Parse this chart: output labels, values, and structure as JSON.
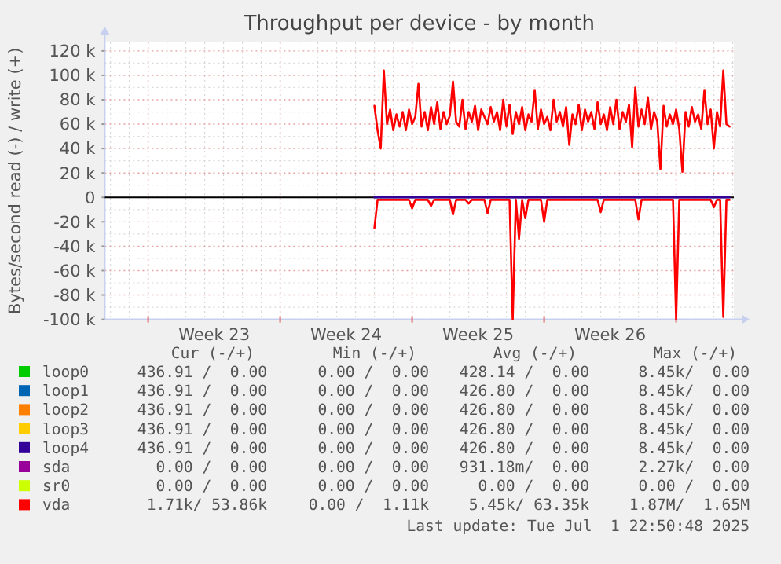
{
  "chart_data": {
    "type": "line",
    "title": "Throughput per device - by month",
    "ylabel": "Bytes/second read (-) / write (+)",
    "xlim": [
      "2025-05-30T16:48",
      "2025-07-03T01:26"
    ],
    "xticks": [
      {
        "value": "2025-06-02T00:00",
        "label": null
      },
      {
        "value": "2025-06-05T12:00",
        "label": "Week 23"
      },
      {
        "value": "2025-06-09T00:00",
        "label": null
      },
      {
        "value": "2025-06-12T12:00",
        "label": "Week 24"
      },
      {
        "value": "2025-06-16T00:00",
        "label": null
      },
      {
        "value": "2025-06-19T12:00",
        "label": "Week 25"
      },
      {
        "value": "2025-06-23T00:00",
        "label": null
      },
      {
        "value": "2025-06-26T12:00",
        "label": "Week 26"
      },
      {
        "value": "2025-06-30T00:00",
        "label": null
      }
    ],
    "ylim": [
      -100000,
      127000
    ],
    "yticks": [
      {
        "value": -100000,
        "label": "-100 k"
      },
      {
        "value": -80000,
        "label": "-80 k"
      },
      {
        "value": -60000,
        "label": "-60 k"
      },
      {
        "value": -40000,
        "label": "-40 k"
      },
      {
        "value": -20000,
        "label": "-20 k"
      },
      0,
      {
        "value": 20000,
        "label": "20 k"
      },
      {
        "value": 40000,
        "label": "40 k"
      },
      {
        "value": 60000,
        "label": "60 k"
      },
      {
        "value": 80000,
        "label": "80 k"
      },
      {
        "value": 100000,
        "label": "100 k"
      },
      {
        "value": 120000,
        "label": "120 k"
      }
    ],
    "grid": true,
    "legend": "bottom",
    "ref_lines": [
      {
        "axis": "y",
        "value": 0,
        "color": "#000000"
      }
    ],
    "x": [
      "2025-06-14T00:00",
      "2025-06-14T04:00",
      "2025-06-14T08:00",
      "2025-06-14T12:00",
      "2025-06-14T16:00",
      "2025-06-14T20:00",
      "2025-06-15T00:00",
      "2025-06-15T04:00",
      "2025-06-15T08:00",
      "2025-06-15T12:00",
      "2025-06-15T16:00",
      "2025-06-15T20:00",
      "2025-06-16T00:00",
      "2025-06-16T04:00",
      "2025-06-16T08:00",
      "2025-06-16T12:00",
      "2025-06-16T16:00",
      "2025-06-16T20:00",
      "2025-06-17T00:00",
      "2025-06-17T04:00",
      "2025-06-17T08:00",
      "2025-06-17T12:00",
      "2025-06-17T16:00",
      "2025-06-17T20:00",
      "2025-06-18T00:00",
      "2025-06-18T04:00",
      "2025-06-18T08:00",
      "2025-06-18T12:00",
      "2025-06-18T16:00",
      "2025-06-18T20:00",
      "2025-06-19T00:00",
      "2025-06-19T04:00",
      "2025-06-19T08:00",
      "2025-06-19T12:00",
      "2025-06-19T16:00",
      "2025-06-19T20:00",
      "2025-06-20T00:00",
      "2025-06-20T04:00",
      "2025-06-20T08:00",
      "2025-06-20T12:00",
      "2025-06-20T16:00",
      "2025-06-20T20:00",
      "2025-06-21T00:00",
      "2025-06-21T04:00",
      "2025-06-21T08:00",
      "2025-06-21T12:00",
      "2025-06-21T16:00",
      "2025-06-21T20:00",
      "2025-06-22T00:00",
      "2025-06-22T04:00",
      "2025-06-22T08:00",
      "2025-06-22T12:00",
      "2025-06-22T16:00",
      "2025-06-22T20:00",
      "2025-06-23T00:00",
      "2025-06-23T04:00",
      "2025-06-23T08:00",
      "2025-06-23T12:00",
      "2025-06-23T16:00",
      "2025-06-23T20:00",
      "2025-06-24T00:00",
      "2025-06-24T04:00",
      "2025-06-24T08:00",
      "2025-06-24T12:00",
      "2025-06-24T16:00",
      "2025-06-24T20:00",
      "2025-06-25T00:00",
      "2025-06-25T04:00",
      "2025-06-25T08:00",
      "2025-06-25T12:00",
      "2025-06-25T16:00",
      "2025-06-25T20:00",
      "2025-06-26T00:00",
      "2025-06-26T04:00",
      "2025-06-26T08:00",
      "2025-06-26T12:00",
      "2025-06-26T16:00",
      "2025-06-26T20:00",
      "2025-06-27T00:00",
      "2025-06-27T04:00",
      "2025-06-27T08:00",
      "2025-06-27T12:00",
      "2025-06-27T16:00",
      "2025-06-27T20:00",
      "2025-06-28T00:00",
      "2025-06-28T04:00",
      "2025-06-28T08:00",
      "2025-06-28T12:00",
      "2025-06-28T16:00",
      "2025-06-28T20:00",
      "2025-06-29T00:00",
      "2025-06-29T04:00",
      "2025-06-29T08:00",
      "2025-06-29T12:00",
      "2025-06-29T16:00",
      "2025-06-29T20:00",
      "2025-06-30T00:00",
      "2025-06-30T04:00",
      "2025-06-30T08:00",
      "2025-06-30T12:00",
      "2025-06-30T16:00",
      "2025-06-30T20:00",
      "2025-07-01T00:00",
      "2025-07-01T04:00",
      "2025-07-01T08:00",
      "2025-07-01T12:00",
      "2025-07-01T16:00",
      "2025-07-01T20:00",
      "2025-07-02T00:00",
      "2025-07-02T04:00",
      "2025-07-02T08:00",
      "2025-07-02T12:00",
      "2025-07-02T16:00",
      "2025-07-02T20:00"
    ],
    "series": [
      {
        "name": "loop0",
        "color": "#00cc00",
        "values": [
          null,
          null,
          null,
          null,
          null,
          null,
          null,
          null,
          null,
          null,
          null,
          null,
          null,
          null,
          null,
          null,
          null,
          null,
          null,
          null,
          null,
          null,
          null,
          null,
          null,
          null,
          null,
          null,
          null,
          null,
          null,
          null,
          null,
          null,
          null,
          null,
          null,
          null,
          null,
          null,
          null,
          null,
          null,
          null,
          null,
          null,
          null,
          null,
          null,
          null,
          null,
          null,
          null,
          null,
          null,
          null,
          null,
          null,
          null,
          null,
          null,
          null,
          null,
          null,
          null,
          null,
          null,
          null,
          null,
          null,
          null,
          null,
          null,
          null,
          null,
          null,
          null,
          null,
          null,
          null,
          null,
          null,
          null,
          null,
          null,
          null,
          null,
          null,
          null,
          null,
          null,
          null,
          null,
          null,
          null,
          null,
          null,
          null,
          null,
          null,
          null,
          null,
          null,
          null,
          null,
          null,
          null,
          null,
          null,
          null,
          null,
          null,
          null,
          null
        ]
      },
      {
        "name": "loop1",
        "color": "#0066b3",
        "values": [
          null,
          null,
          null,
          null,
          null,
          null,
          null,
          null,
          null,
          null,
          null,
          null,
          null,
          null,
          null,
          null,
          null,
          null,
          null,
          null,
          null,
          null,
          null,
          null,
          null,
          null,
          null,
          null,
          null,
          null,
          null,
          null,
          null,
          null,
          null,
          null,
          null,
          null,
          null,
          null,
          null,
          null,
          null,
          null,
          null,
          null,
          null,
          null,
          null,
          null,
          null,
          null,
          null,
          null,
          null,
          null,
          null,
          null,
          null,
          null,
          null,
          null,
          null,
          null,
          null,
          null,
          null,
          null,
          null,
          null,
          null,
          null,
          null,
          null,
          null,
          null,
          null,
          null,
          null,
          null,
          null,
          null,
          null,
          null,
          null,
          null,
          null,
          null,
          null,
          null,
          null,
          null,
          null,
          null,
          null,
          null,
          null,
          null,
          null,
          null,
          null,
          null,
          null,
          null,
          null,
          null,
          null,
          null,
          null,
          null,
          null,
          null,
          null,
          null
        ]
      },
      {
        "name": "loop2",
        "color": "#ff8000",
        "values": [
          null,
          null,
          null,
          null,
          null,
          null,
          null,
          null,
          null,
          null,
          null,
          null,
          null,
          null,
          null,
          null,
          null,
          null,
          null,
          null,
          null,
          null,
          null,
          null,
          null,
          null,
          null,
          null,
          null,
          null,
          null,
          null,
          null,
          null,
          null,
          null,
          null,
          null,
          null,
          null,
          null,
          null,
          null,
          null,
          null,
          null,
          null,
          null,
          null,
          null,
          null,
          null,
          null,
          null,
          null,
          null,
          null,
          null,
          null,
          null,
          null,
          null,
          null,
          null,
          null,
          null,
          null,
          null,
          null,
          null,
          null,
          null,
          null,
          null,
          null,
          null,
          null,
          null,
          null,
          null,
          null,
          null,
          null,
          null,
          null,
          null,
          null,
          null,
          null,
          null,
          null,
          null,
          null,
          null,
          null,
          null,
          null,
          null,
          null,
          null,
          null,
          null,
          null,
          null,
          null,
          null,
          null,
          null,
          null,
          null,
          null,
          null,
          null,
          null
        ]
      },
      {
        "name": "loop3",
        "color": "#ffcc00",
        "values": [
          null,
          null,
          null,
          null,
          null,
          null,
          null,
          null,
          null,
          null,
          null,
          null,
          null,
          null,
          null,
          null,
          null,
          null,
          null,
          null,
          null,
          null,
          null,
          null,
          null,
          null,
          null,
          null,
          null,
          null,
          null,
          null,
          null,
          null,
          null,
          null,
          null,
          null,
          null,
          null,
          null,
          null,
          null,
          null,
          null,
          null,
          null,
          null,
          null,
          null,
          null,
          null,
          null,
          null,
          null,
          null,
          null,
          null,
          null,
          null,
          null,
          null,
          null,
          null,
          null,
          null,
          null,
          null,
          null,
          null,
          null,
          null,
          null,
          null,
          null,
          null,
          null,
          null,
          null,
          null,
          null,
          null,
          null,
          null,
          null,
          null,
          null,
          null,
          null,
          null,
          null,
          null,
          null,
          null,
          null,
          null,
          null,
          null,
          null,
          null,
          null,
          null,
          null,
          null,
          null,
          null,
          null,
          null,
          null,
          null,
          null,
          null,
          null,
          null
        ]
      },
      {
        "name": "loop4",
        "color": "#330099",
        "x": [
          "2025-06-14T00:00",
          "2025-07-02T20:00"
        ],
        "values": [
          0,
          0
        ]
      },
      {
        "name": "sda",
        "color": "#990099",
        "values": [
          null,
          null,
          null,
          null,
          null,
          null,
          null,
          null,
          null,
          null,
          null,
          null,
          null,
          null,
          null,
          null,
          null,
          null,
          null,
          null,
          null,
          null,
          null,
          null,
          null,
          null,
          null,
          null,
          null,
          null,
          null,
          null,
          null,
          null,
          null,
          null,
          null,
          null,
          null,
          null,
          null,
          null,
          null,
          null,
          null,
          null,
          null,
          null,
          null,
          null,
          null,
          null,
          null,
          null,
          null,
          null,
          null,
          null,
          null,
          null,
          null,
          null,
          null,
          null,
          null,
          null,
          null,
          null,
          null,
          null,
          null,
          null,
          null,
          null,
          null,
          null,
          null,
          null,
          null,
          null,
          null,
          null,
          null,
          null,
          null,
          null,
          null,
          null,
          null,
          null,
          null,
          null,
          null,
          null,
          null,
          null,
          null,
          null,
          null,
          null,
          null,
          null,
          null,
          null,
          null,
          null,
          null,
          null,
          null,
          null,
          null,
          null,
          null,
          null
        ]
      },
      {
        "name": "sr0",
        "color": "#ccff00",
        "values": [
          null,
          null,
          null,
          null,
          null,
          null,
          null,
          null,
          null,
          null,
          null,
          null,
          null,
          null,
          null,
          null,
          null,
          null,
          null,
          null,
          null,
          null,
          null,
          null,
          null,
          null,
          null,
          null,
          null,
          null,
          null,
          null,
          null,
          null,
          null,
          null,
          null,
          null,
          null,
          null,
          null,
          null,
          null,
          null,
          null,
          null,
          null,
          null,
          null,
          null,
          null,
          null,
          null,
          null,
          null,
          null,
          null,
          null,
          null,
          null,
          null,
          null,
          null,
          null,
          null,
          null,
          null,
          null,
          null,
          null,
          null,
          null,
          null,
          null,
          null,
          null,
          null,
          null,
          null,
          null,
          null,
          null,
          null,
          null,
          null,
          null,
          null,
          null,
          null,
          null,
          null,
          null,
          null,
          null,
          null,
          null,
          null,
          null,
          null,
          null,
          null,
          null,
          null,
          null,
          null,
          null,
          null,
          null,
          null,
          null,
          null,
          null,
          null,
          null
        ]
      },
      {
        "name": "vda",
        "color": "#ff0000",
        "values": [
          75000,
          55000,
          40000,
          104000,
          60000,
          72000,
          55000,
          68000,
          58000,
          70000,
          55000,
          72000,
          60000,
          66000,
          93000,
          58000,
          70000,
          55000,
          74000,
          60000,
          78000,
          56000,
          70000,
          60000,
          67000,
          95000,
          62000,
          58000,
          80000,
          56000,
          70000,
          62000,
          75000,
          55000,
          72000,
          66000,
          60000,
          74000,
          62000,
          70000,
          55000,
          80000,
          58000,
          76000,
          52000,
          70000,
          60000,
          74000,
          55000,
          68000,
          62000,
          88000,
          56000,
          72000,
          60000,
          66000,
          55000,
          80000,
          62000,
          70000,
          58000,
          74000,
          43000,
          68000,
          60000,
          76000,
          55000,
          72000,
          62000,
          70000,
          56000,
          78000,
          60000,
          68000,
          55000,
          74000,
          60000,
          80000,
          56000,
          70000,
          62000,
          76000,
          41000,
          90000,
          58000,
          72000,
          60000,
          82000,
          56000,
          70000,
          62000,
          23000,
          75000,
          58000,
          68000,
          60000,
          72000,
          56000,
          21000,
          70000,
          58000,
          74000,
          62000,
          68000,
          56000,
          88000,
          60000,
          72000,
          40000,
          70000,
          58000,
          104000,
          60000,
          58000
        ]
      },
      {
        "color": "#ff0000",
        "values": [
          -25000,
          -2000,
          -2000,
          -2000,
          -2000,
          -2000,
          -2000,
          -2000,
          -2000,
          -2000,
          -2000,
          -2000,
          -9000,
          -2000,
          -2000,
          -2000,
          -2000,
          -2000,
          -7000,
          -2000,
          -2000,
          -2000,
          -2000,
          -2000,
          -2000,
          -14000,
          -2000,
          -2000,
          -2000,
          -2000,
          -5000,
          -2000,
          -2000,
          -2000,
          -2000,
          -2000,
          -13000,
          -2000,
          -2000,
          -2000,
          -2000,
          -2000,
          -2000,
          -2000,
          -100000,
          -2000,
          -34000,
          -2000,
          -17000,
          -2000,
          -2000,
          -2000,
          -2000,
          -2000,
          -20000,
          -2000,
          -2000,
          -2000,
          -2000,
          -2000,
          -2000,
          -2000,
          -2000,
          -2000,
          -2000,
          -2000,
          -2000,
          -2000,
          -2000,
          -2000,
          -2000,
          -2000,
          -12000,
          -2000,
          -2000,
          -2000,
          -2000,
          -2000,
          -2000,
          -2000,
          -2000,
          -2000,
          -2000,
          -2000,
          -18000,
          -2000,
          -2000,
          -2000,
          -2000,
          -2000,
          -2000,
          -2000,
          -2000,
          -2000,
          -2000,
          -2000,
          -100000,
          -2000,
          -2000,
          -2000,
          -2000,
          -2000,
          -2000,
          -2000,
          -2000,
          -2000,
          -2000,
          -2000,
          -8000,
          -2000,
          -2000,
          -98000,
          -2000,
          -2000
        ]
      }
    ],
    "annotations": [
      "Cur (-/+)",
      "Min (-/+)",
      "Avg (-/+)",
      "Max (-/+)",
      "436.91 /  0.00",
      "0.00 /  0.00",
      "428.14 /  0.00",
      "8.45k/  0.00",
      "436.91 /  0.00",
      "0.00 /  0.00",
      "426.80 /  0.00",
      "8.45k/  0.00",
      "436.91 /  0.00",
      "0.00 /  0.00",
      "426.80 /  0.00",
      "8.45k/  0.00",
      "436.91 /  0.00",
      "0.00 /  0.00",
      "426.80 /  0.00",
      "8.45k/  0.00",
      "436.91 /  0.00",
      "0.00 /  0.00",
      "426.80 /  0.00",
      "8.45k/  0.00",
      "0.00 /  0.00",
      "0.00 /  0.00",
      "931.18m/  0.00",
      "2.27k/  0.00",
      "0.00 /  0.00",
      "0.00 /  0.00",
      "0.00 /  0.00",
      "0.00 /  0.00",
      "1.71k/ 53.86k",
      "0.00 /  1.11k",
      "5.45k/ 63.35k",
      "1.87M/  1.65M",
      "Last update: Tue Jul  1 22:50:48 2025"
    ]
  }
}
